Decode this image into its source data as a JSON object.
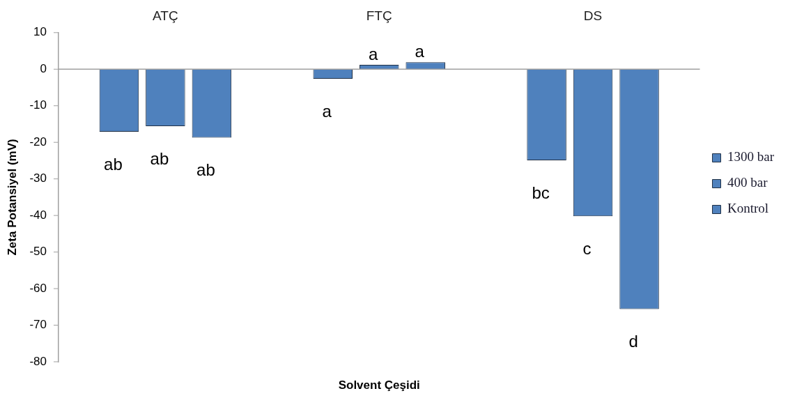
{
  "chart_data": {
    "type": "bar",
    "xlabel": "Solvent Çeşidi",
    "ylabel": "Zeta Potansiyel (mV)",
    "categories": [
      "ATÇ",
      "FTÇ",
      "DS"
    ],
    "series": [
      {
        "name": "1300 bar",
        "color": "#4f81bd",
        "values": [
          -17.1,
          -2.6,
          -24.9
        ]
      },
      {
        "name": "400 bar",
        "color": "#4f81bd",
        "values": [
          -15.6,
          1.2,
          -40.2
        ]
      },
      {
        "name": "Kontrol",
        "color": "#4f81bd",
        "values": [
          -18.7,
          1.9,
          -65.6
        ]
      }
    ],
    "ylim": [
      -80,
      10
    ],
    "yticks": [
      10,
      0,
      -10,
      -20,
      -30,
      -40,
      -50,
      -60,
      -70,
      -80
    ],
    "grid": false,
    "ref_lines": [
      {
        "axis": "y",
        "value": 0,
        "color": "#a0a0a0"
      }
    ],
    "legend": "right",
    "annotations": [
      "ab",
      "ab",
      "ab",
      "a",
      "a",
      "a",
      "bc",
      "c",
      "d"
    ]
  }
}
